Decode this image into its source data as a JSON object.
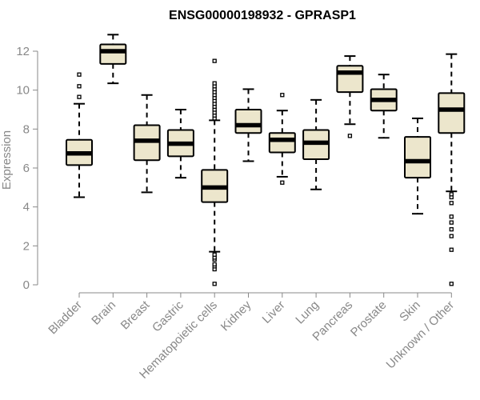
{
  "chart_data": {
    "type": "box",
    "title": "ENSG00000198932 - GPRASP1",
    "xlabel": "",
    "ylabel": "Expression",
    "ylim": [
      0,
      12.5
    ],
    "yticks": [
      0,
      2,
      4,
      6,
      8,
      10,
      12
    ],
    "grid": false,
    "box_fill": "#ece6cc",
    "box_stroke": "#000000",
    "categories": [
      "Bladder",
      "Brain",
      "Breast",
      "Gastric",
      "Hematopoietic cells",
      "Kidney",
      "Liver",
      "Lung",
      "Pancreas",
      "Prostate",
      "Skin",
      "Unknown / Other"
    ],
    "boxes": [
      {
        "name": "Bladder",
        "whisker_low": 4.5,
        "q1": 6.15,
        "median": 6.75,
        "q3": 7.45,
        "whisker_high": 9.3,
        "outliers": [
          9.65,
          10.2,
          10.8
        ]
      },
      {
        "name": "Brain",
        "whisker_low": 10.35,
        "q1": 11.35,
        "median": 12.0,
        "q3": 12.35,
        "whisker_high": 12.85,
        "outliers": []
      },
      {
        "name": "Breast",
        "whisker_low": 4.75,
        "q1": 6.4,
        "median": 7.4,
        "q3": 8.2,
        "whisker_high": 9.75,
        "outliers": []
      },
      {
        "name": "Gastric",
        "whisker_low": 5.5,
        "q1": 6.6,
        "median": 7.25,
        "q3": 7.95,
        "whisker_high": 9.0,
        "outliers": []
      },
      {
        "name": "Hematopoietic cells",
        "whisker_low": 1.7,
        "q1": 4.25,
        "median": 5.0,
        "q3": 5.9,
        "whisker_high": 8.45,
        "outliers": [
          0.05,
          0.8,
          0.95,
          1.05,
          1.3,
          1.4,
          1.55,
          8.55,
          8.7,
          8.85,
          9.0,
          9.15,
          9.3,
          9.45,
          9.6,
          9.75,
          9.9,
          10.05,
          10.2,
          10.35,
          11.5
        ]
      },
      {
        "name": "Kidney",
        "whisker_low": 6.35,
        "q1": 7.8,
        "median": 8.2,
        "q3": 9.0,
        "whisker_high": 10.05,
        "outliers": []
      },
      {
        "name": "Liver",
        "whisker_low": 5.55,
        "q1": 6.8,
        "median": 7.45,
        "q3": 7.8,
        "whisker_high": 8.95,
        "outliers": [
          5.25,
          9.75
        ]
      },
      {
        "name": "Lung",
        "whisker_low": 4.9,
        "q1": 6.45,
        "median": 7.3,
        "q3": 7.95,
        "whisker_high": 9.5,
        "outliers": []
      },
      {
        "name": "Pancreas",
        "whisker_low": 8.25,
        "q1": 9.9,
        "median": 10.9,
        "q3": 11.25,
        "whisker_high": 11.75,
        "outliers": [
          7.65
        ]
      },
      {
        "name": "Prostate",
        "whisker_low": 7.55,
        "q1": 8.95,
        "median": 9.5,
        "q3": 10.05,
        "whisker_high": 10.8,
        "outliers": []
      },
      {
        "name": "Skin",
        "whisker_low": 3.65,
        "q1": 5.5,
        "median": 6.35,
        "q3": 7.6,
        "whisker_high": 8.55,
        "outliers": []
      },
      {
        "name": "Unknown / Other",
        "whisker_low": 4.8,
        "q1": 7.8,
        "median": 9.0,
        "q3": 9.85,
        "whisker_high": 11.85,
        "outliers": [
          0.05,
          1.8,
          2.5,
          2.85,
          3.2,
          3.5,
          4.2,
          4.5,
          4.65
        ]
      }
    ]
  }
}
